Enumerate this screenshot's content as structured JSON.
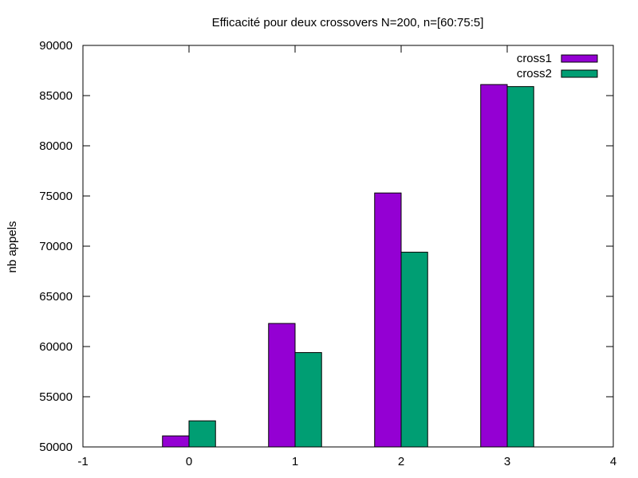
{
  "chart_data": {
    "type": "bar",
    "title": "Efficacité pour deux crossovers N=200, n=[60:75:5]",
    "xlabel": "",
    "ylabel": "nb appels",
    "categories": [
      0,
      1,
      2,
      3
    ],
    "xlim": [
      -1,
      4
    ],
    "ylim": [
      50000,
      90000
    ],
    "x_ticks": [
      "-1",
      "0",
      "1",
      "2",
      "3",
      "4"
    ],
    "y_ticks": [
      "50000",
      "55000",
      "60000",
      "65000",
      "70000",
      "75000",
      "80000",
      "85000",
      "90000"
    ],
    "legend_position": "top-right",
    "grid": false,
    "series": [
      {
        "name": "cross1",
        "color": "#9400d3",
        "values": [
          51100,
          62300,
          75300,
          86100
        ]
      },
      {
        "name": "cross2",
        "color": "#009e73",
        "values": [
          52600,
          59400,
          69400,
          85900
        ]
      }
    ]
  }
}
